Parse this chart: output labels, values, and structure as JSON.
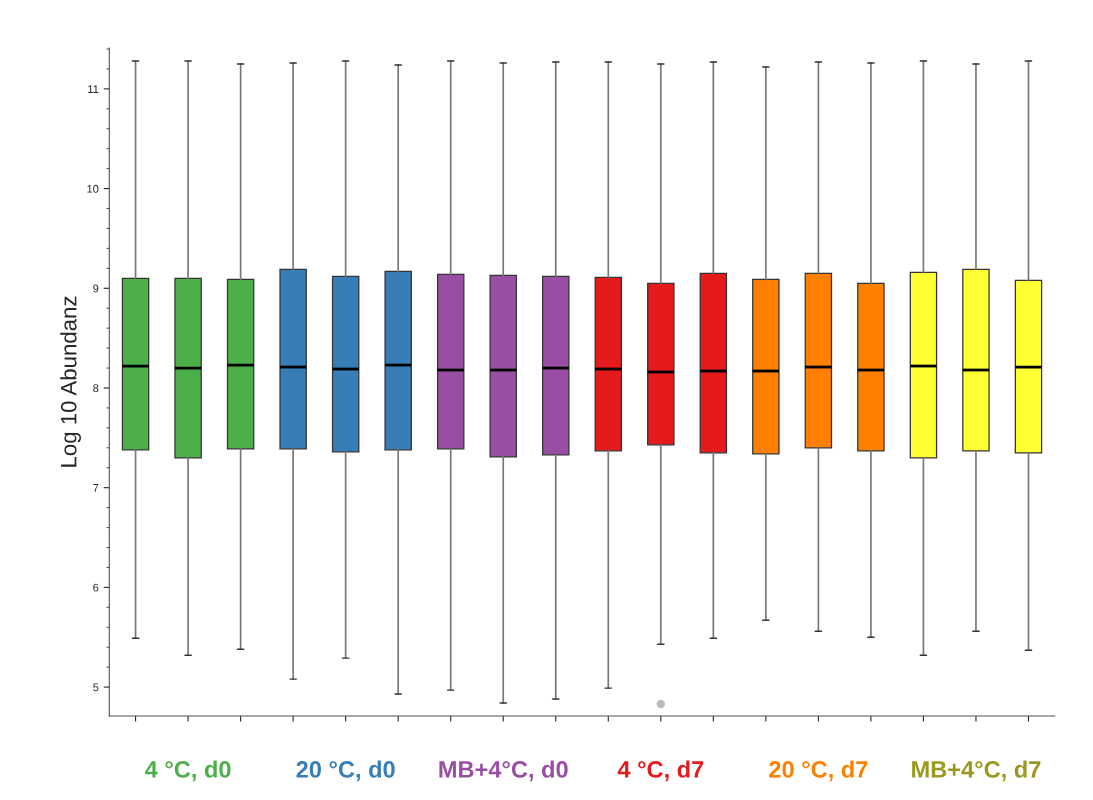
{
  "chart_data": {
    "type": "box",
    "ylabel": "Log 10 Abundanz",
    "categories": [
      null,
      "4 °C, d0",
      null,
      null,
      "20 °C, d0",
      null,
      null,
      "MB+4°C, d0",
      null,
      null,
      "4 °C, d7",
      null,
      null,
      "20 °C, d7",
      null,
      null,
      "MB+4°C, d7",
      null
    ],
    "colors": [
      "#4daf4a",
      "#4daf4a",
      "#4daf4a",
      "#377eb8",
      "#377eb8",
      "#377eb8",
      "#984ea3",
      "#984ea3",
      "#984ea3",
      "#e41a1c",
      "#e41a1c",
      "#e41a1c",
      "#ff7f00",
      "#ff7f00",
      "#ff7f00",
      "#ffff33",
      "#ffff33",
      "#ffff33"
    ],
    "boxes": [
      {
        "low": 5.49,
        "q1": 7.38,
        "median": 8.22,
        "q3": 9.1,
        "high": 11.28
      },
      {
        "low": 5.32,
        "q1": 7.3,
        "median": 8.2,
        "q3": 9.1,
        "high": 11.28
      },
      {
        "low": 5.38,
        "q1": 7.39,
        "median": 8.23,
        "q3": 9.09,
        "high": 11.25
      },
      {
        "low": 5.08,
        "q1": 7.39,
        "median": 8.21,
        "q3": 9.19,
        "high": 11.26
      },
      {
        "low": 5.29,
        "q1": 7.36,
        "median": 8.19,
        "q3": 9.12,
        "high": 11.28
      },
      {
        "low": 4.93,
        "q1": 7.38,
        "median": 8.23,
        "q3": 9.17,
        "high": 11.24
      },
      {
        "low": 4.97,
        "q1": 7.39,
        "median": 8.18,
        "q3": 9.14,
        "high": 11.28
      },
      {
        "low": 4.84,
        "q1": 7.31,
        "median": 8.18,
        "q3": 9.13,
        "high": 11.26
      },
      {
        "low": 4.88,
        "q1": 7.33,
        "median": 8.2,
        "q3": 9.12,
        "high": 11.27
      },
      {
        "low": 4.99,
        "q1": 7.37,
        "median": 8.19,
        "q3": 9.11,
        "high": 11.27
      },
      {
        "low": 5.43,
        "q1": 7.43,
        "median": 8.16,
        "q3": 9.05,
        "high": 11.25,
        "outliers": [
          4.83
        ]
      },
      {
        "low": 5.49,
        "q1": 7.35,
        "median": 8.17,
        "q3": 9.15,
        "high": 11.27
      },
      {
        "low": 5.67,
        "q1": 7.34,
        "median": 8.17,
        "q3": 9.09,
        "high": 11.22
      },
      {
        "low": 5.56,
        "q1": 7.4,
        "median": 8.21,
        "q3": 9.15,
        "high": 11.27
      },
      {
        "low": 5.5,
        "q1": 7.37,
        "median": 8.18,
        "q3": 9.05,
        "high": 11.26
      },
      {
        "low": 5.32,
        "q1": 7.3,
        "median": 8.22,
        "q3": 9.16,
        "high": 11.28
      },
      {
        "low": 5.56,
        "q1": 7.37,
        "median": 8.18,
        "q3": 9.19,
        "high": 11.25
      },
      {
        "low": 5.37,
        "q1": 7.35,
        "median": 8.21,
        "q3": 9.08,
        "high": 11.28
      }
    ],
    "ylim": [
      4.71,
      11.41
    ],
    "yticks": [
      5,
      {
        "value": 5.2,
        "label": null
      },
      {
        "value": 5.4,
        "label": null
      },
      {
        "value": 5.6,
        "label": null
      },
      {
        "value": 5.8,
        "label": null
      },
      6,
      {
        "value": 6.2,
        "label": null
      },
      {
        "value": 6.4,
        "label": null
      },
      {
        "value": 6.6,
        "label": null
      },
      {
        "value": 6.8,
        "label": null
      },
      7,
      {
        "value": 7.2,
        "label": null
      },
      {
        "value": 7.4,
        "label": null
      },
      {
        "value": 7.6,
        "label": null
      },
      {
        "value": 7.8,
        "label": null
      },
      8,
      {
        "value": 8.2,
        "label": null
      },
      {
        "value": 8.4,
        "label": null
      },
      {
        "value": 8.6,
        "label": null
      },
      {
        "value": 8.8,
        "label": null
      },
      9,
      {
        "value": 9.2,
        "label": null
      },
      {
        "value": 9.4,
        "label": null
      },
      {
        "value": 9.6,
        "label": null
      },
      {
        "value": 9.8,
        "label": null
      },
      10,
      {
        "value": 10.2,
        "label": null
      },
      {
        "value": 10.4,
        "label": null
      },
      {
        "value": 10.6,
        "label": null
      },
      {
        "value": 10.8,
        "label": null
      },
      11,
      {
        "value": 11.2,
        "label": null
      },
      {
        "value": 11.4,
        "label": null
      }
    ],
    "grid": false
  }
}
